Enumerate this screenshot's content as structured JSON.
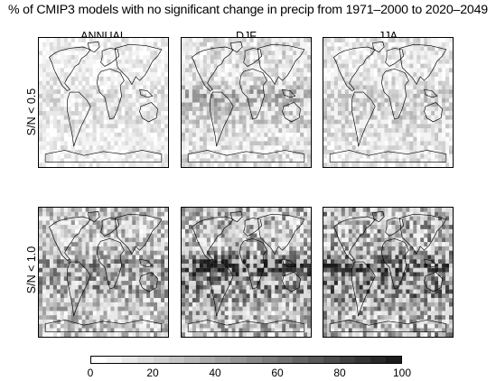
{
  "title": "% of CMIP3 models with no significant change in precip from 1971–2000 to 2020–2049",
  "columns": [
    "ANNUAL",
    "DJF",
    "JJA"
  ],
  "rows": [
    "S/N < 0.5",
    "S/N < 1.0"
  ],
  "colorbar": {
    "ticks": [
      "0",
      "20",
      "40",
      "60",
      "80",
      "100"
    ],
    "min": 0,
    "max": 100,
    "colors": [
      "#ffffff",
      "#f4f4f4",
      "#e8e8e8",
      "#dcdcdc",
      "#d0d0d0",
      "#c4c4c4",
      "#b8b8b8",
      "#acacac",
      "#a0a0a0",
      "#949494",
      "#888888",
      "#7c7c7c",
      "#707070",
      "#646464",
      "#585858",
      "#4c4c4c",
      "#404040",
      "#343434",
      "#282828",
      "#1c1c1c"
    ]
  },
  "panels": [
    {
      "row": 0,
      "col": 0,
      "mean_level": 0.12
    },
    {
      "row": 0,
      "col": 1,
      "mean_level": 0.18
    },
    {
      "row": 0,
      "col": 2,
      "mean_level": 0.16
    },
    {
      "row": 1,
      "col": 0,
      "mean_level": 0.32
    },
    {
      "row": 1,
      "col": 1,
      "mean_level": 0.38
    },
    {
      "row": 1,
      "col": 2,
      "mean_level": 0.42
    }
  ]
}
